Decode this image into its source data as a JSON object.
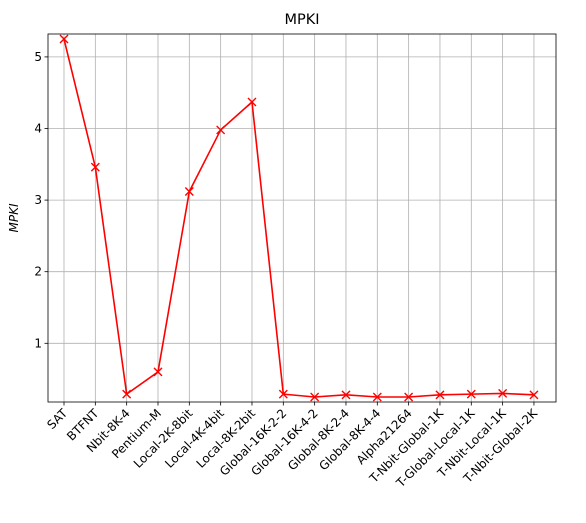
{
  "chart_data": {
    "type": "line",
    "title": "MPKI",
    "xlabel": "",
    "ylabel": "MPKI",
    "categories": [
      "SAT",
      "BTFNT",
      "Nbit-8K-4",
      "Pentium-M",
      "Local-2K-8bit",
      "Local-4K-4bit",
      "Local-8K-2bit",
      "Global-16K-2-2",
      "Global-16K-4-2",
      "Global-8K-2-4",
      "Global-8K-4-4",
      "Alpha21264",
      "T-Nbit-Global-1K",
      "T-Global-Local-1K",
      "T-Nbit-Local-1K",
      "T-Nbit-Global-2K"
    ],
    "series": [
      {
        "values": [
          5.25,
          3.46,
          0.29,
          0.6,
          3.12,
          3.98,
          4.37,
          0.29,
          0.25,
          0.28,
          0.25,
          0.25,
          0.28,
          0.29,
          0.3,
          0.28
        ],
        "color": "#ff0000",
        "marker": "x"
      }
    ],
    "ylim": [
      0.18,
      5.32
    ],
    "yticks": [
      "1",
      "2",
      "3",
      "4",
      "5"
    ],
    "grid": true,
    "legend": "none"
  }
}
